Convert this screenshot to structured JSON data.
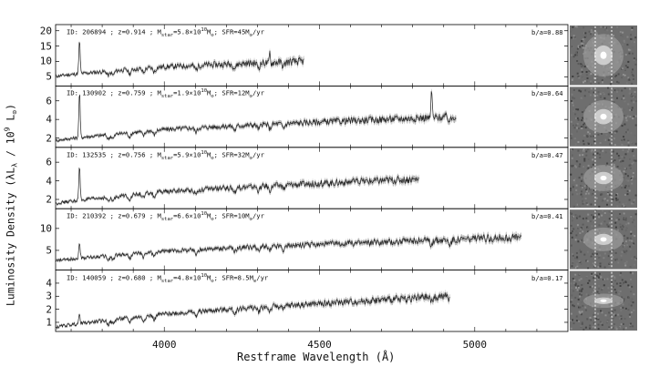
{
  "figure": {
    "ylabel": "Luminosity Density (λL",
    "ylabel_sub": "λ",
    "ylabel_unit": " / 10",
    "ylabel_exp": "9",
    "ylabel_end": " L",
    "ylabel_sun": "⊙",
    "ylabel_close": ")",
    "xlabel": "Restframe Wavelength (Å)"
  },
  "chart_data": {
    "type": "line",
    "xlim": [
      3650,
      5300
    ],
    "xticks": [
      4000,
      4500,
      5000
    ],
    "xtick_labels": [
      "4000",
      "4500",
      "5000"
    ],
    "grid": false,
    "panels": [
      {
        "annotation": "ID: 206894 ; z=0.914 ; M_star=5.8×10^10 M_sun; SFR=45M_sun/yr",
        "label_id": "ID: 206894 ; z=0.914 ; M",
        "label_mass": "=5.8×10",
        "label_mass_exp": "10",
        "label_sfr": "; SFR=45M",
        "label_tail": "/yr",
        "ba": "b/a=0.88",
        "ylim": [
          2,
          22
        ],
        "yticks": [
          5,
          10,
          15,
          20
        ],
        "x_end": 4450,
        "start_value": 6,
        "end_value": 10,
        "color": "#222222",
        "emission_lines": [
          {
            "x": 3727,
            "value": 17
          },
          {
            "x": 4340,
            "value": 13
          }
        ]
      },
      {
        "annotation": "ID: 130902 ; z=0.759 ; M_star=1.9×10^10 M_sun; SFR=12M_sun/yr",
        "label_id": "ID: 130902 ; z=0.759 ; M",
        "label_mass": "=1.9×10",
        "label_mass_exp": "10",
        "label_sfr": "; SFR=12M",
        "label_tail": "/yr",
        "ba": "b/a=0.64",
        "ylim": [
          1,
          7.6
        ],
        "yticks": [
          2,
          4,
          6
        ],
        "x_end": 4940,
        "start_value": 2,
        "end_value": 4.3,
        "color": "#222222",
        "emission_lines": [
          {
            "x": 3727,
            "value": 7
          },
          {
            "x": 4861,
            "value": 7.3
          }
        ]
      },
      {
        "annotation": "ID: 132535 ; z=0.756 ; M_star=5.9×10^10 M_sun; SFR=32M_sun/yr",
        "label_id": "ID: 132535 ; z=0.756 ; M",
        "label_mass": "=5.9×10",
        "label_mass_exp": "10",
        "label_sfr": "; SFR=32M",
        "label_tail": "/yr",
        "ba": "b/a=0.47",
        "ylim": [
          1,
          7.6
        ],
        "yticks": [
          2,
          4,
          6
        ],
        "x_end": 4820,
        "start_value": 1.8,
        "end_value": 4.2,
        "color": "#222222",
        "emission_lines": [
          {
            "x": 3727,
            "value": 5.6
          }
        ]
      },
      {
        "annotation": "ID: 210392 ; z=0.679 ; M_star=6.6×10^10 M_sun; SFR=10M_sun/yr",
        "label_id": "ID: 210392 ; z=0.679 ; M",
        "label_mass": "=6.6×10",
        "label_mass_exp": "10",
        "label_sfr": "; SFR=10M",
        "label_tail": "/yr",
        "ba": "b/a=0.41",
        "ylim": [
          0.5,
          14.5
        ],
        "yticks": [
          5,
          10
        ],
        "x_end": 5150,
        "start_value": 3,
        "end_value": 8,
        "color": "#222222",
        "emission_lines": [
          {
            "x": 3727,
            "value": 7
          }
        ]
      },
      {
        "annotation": "ID: 140059 ; z=0.680 ; M_star=4.8×10^10 M_sun; SFR=8.5M_sun/yr",
        "label_id": "ID: 140059 ; z=0.680 ; M",
        "label_mass": "=4.8×10",
        "label_mass_exp": "10",
        "label_sfr": "; SFR=8.5M",
        "label_tail": "/yr",
        "ba": "b/a=0.17",
        "ylim": [
          0.3,
          5
        ],
        "yticks": [
          1,
          2,
          3,
          4
        ],
        "x_end": 4920,
        "start_value": 0.7,
        "end_value": 3.0,
        "color": "#222222",
        "emission_lines": [
          {
            "x": 3727,
            "value": 1.6
          }
        ]
      }
    ]
  }
}
